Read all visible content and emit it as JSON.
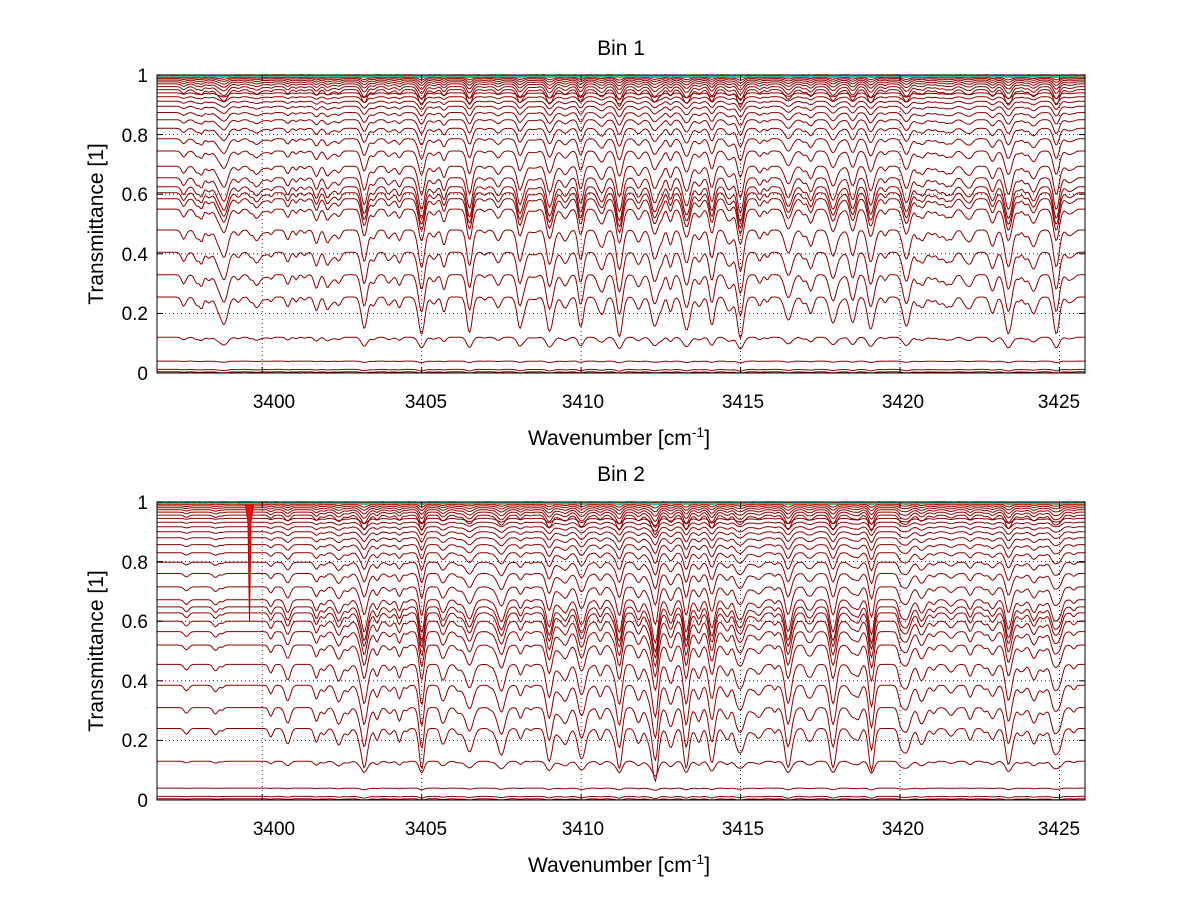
{
  "chart_data": [
    {
      "type": "line",
      "title": "Bin 1",
      "xlabel_base": "Wavenumber [cm",
      "xlabel_sup": "-1",
      "xlabel_end": "]",
      "ylabel": "Transmittance [1]",
      "xlim": [
        3396.7,
        3425.8
      ],
      "ylim": [
        0,
        1
      ],
      "xticks": [
        3400,
        3405,
        3410,
        3415,
        3420,
        3425
      ],
      "xtick_labels": [
        "3400",
        "3405",
        "3410",
        "3415",
        "3420",
        "3425"
      ],
      "yticks": [
        0,
        0.2,
        0.4,
        0.6,
        0.8,
        1
      ],
      "ytick_labels": [
        "0",
        "0.2",
        "0.4",
        "0.6",
        "0.8",
        "1"
      ],
      "grid": true,
      "line_color": "#8b0000",
      "top_colors": [
        "#ff4500",
        "#ff8c00",
        "#ffa500",
        "#d4d400",
        "#00c0c0"
      ],
      "curve_baselines": [
        0.996,
        0.992,
        0.988,
        0.983,
        0.977,
        0.97,
        0.961,
        0.951,
        0.94,
        0.927,
        0.912,
        0.895,
        0.874,
        0.85,
        0.821,
        0.786,
        0.745,
        0.694,
        0.655,
        0.625,
        0.605,
        0.585,
        0.55,
        0.48,
        0.405,
        0.33,
        0.255,
        0.12,
        0.04,
        0.012,
        0.004
      ],
      "strong_lines": [
        3398.8,
        3403.2,
        3405.0,
        3406.5,
        3408.1,
        3409.0,
        3410.0,
        3411.2,
        3412.3,
        3413.3,
        3414.1,
        3415.0,
        3416.5,
        3417.9,
        3419.1,
        3420.2,
        3423.4,
        3424.9
      ],
      "weak_lines": [
        3399.8,
        3400.8,
        3401.7,
        3402.4,
        3404.3,
        3405.7,
        3407.4,
        3409.5,
        3410.6,
        3411.8,
        3412.8,
        3413.7,
        3414.6,
        3415.6,
        3417.2,
        3418.5,
        3420.7,
        3421.6,
        3422.2,
        3422.9,
        3424.2
      ]
    },
    {
      "type": "line",
      "title": "Bin 2",
      "xlabel_base": "Wavenumber [cm",
      "xlabel_sup": "-1",
      "xlabel_end": "]",
      "ylabel": "Transmittance [1]",
      "xlim": [
        3396.7,
        3425.8
      ],
      "ylim": [
        0,
        1
      ],
      "xticks": [
        3400,
        3405,
        3410,
        3415,
        3420,
        3425
      ],
      "xtick_labels": [
        "3400",
        "3405",
        "3410",
        "3415",
        "3420",
        "3425"
      ],
      "yticks": [
        0,
        0.2,
        0.4,
        0.6,
        0.8,
        1
      ],
      "ytick_labels": [
        "0",
        "0.2",
        "0.4",
        "0.6",
        "0.8",
        "1"
      ],
      "grid": true,
      "line_color": "#8b0000",
      "top_colors": [
        "#ff4500",
        "#ff8c00",
        "#ffa500",
        "#d4d400",
        "#00c0c0"
      ],
      "curve_baselines": [
        0.996,
        0.992,
        0.987,
        0.981,
        0.974,
        0.966,
        0.956,
        0.945,
        0.932,
        0.917,
        0.9,
        0.88,
        0.857,
        0.83,
        0.798,
        0.76,
        0.715,
        0.672,
        0.648,
        0.628,
        0.6,
        0.565,
        0.52,
        0.455,
        0.385,
        0.31,
        0.24,
        0.13,
        0.04,
        0.012,
        0.004
      ],
      "spike_line": 3399.6,
      "strong_lines": [
        3403.2,
        3405.0,
        3406.5,
        3407.5,
        3409.0,
        3410.0,
        3411.2,
        3412.3,
        3413.3,
        3414.1,
        3415.0,
        3416.5,
        3417.9,
        3419.1,
        3420.2,
        3423.4,
        3424.9
      ],
      "weak_lines": [
        3400.8,
        3401.7,
        3402.4,
        3404.3,
        3405.7,
        3408.1,
        3409.5,
        3410.6,
        3411.8,
        3412.8,
        3413.7,
        3414.6,
        3415.6,
        3417.2,
        3418.5,
        3420.7,
        3421.6,
        3422.2,
        3422.9,
        3424.2
      ]
    }
  ]
}
